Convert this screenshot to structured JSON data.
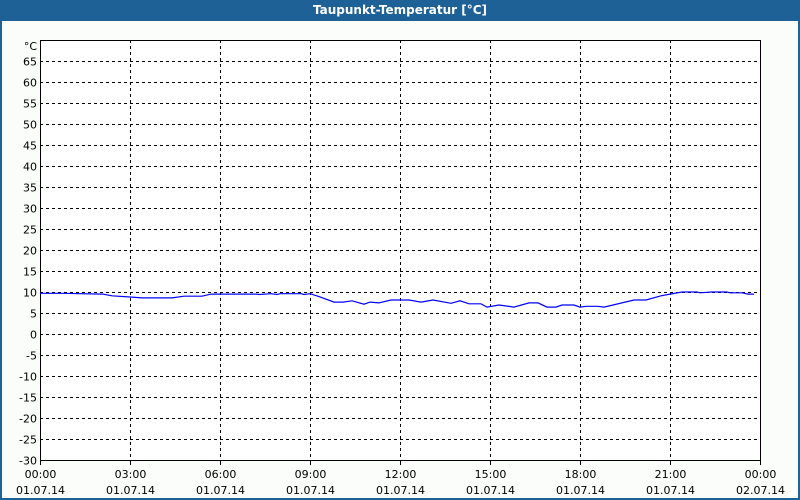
{
  "window": {
    "title": "Taupunkt-Temperatur [°C]"
  },
  "chart_data": {
    "type": "line",
    "title": "Taupunkt-Temperatur [°C]",
    "ylabel": "°C",
    "xlabel": "",
    "ylim": [
      -30,
      70
    ],
    "yticks": [
      65,
      60,
      55,
      50,
      45,
      40,
      35,
      30,
      25,
      20,
      15,
      10,
      5,
      0,
      -5,
      -10,
      -15,
      -20,
      -25,
      -30
    ],
    "xlim_hours": [
      0,
      24
    ],
    "xticks": [
      {
        "time": "00:00",
        "date": "01.07.14"
      },
      {
        "time": "03:00",
        "date": "01.07.14"
      },
      {
        "time": "06:00",
        "date": "01.07.14"
      },
      {
        "time": "09:00",
        "date": "01.07.14"
      },
      {
        "time": "12:00",
        "date": "01.07.14"
      },
      {
        "time": "15:00",
        "date": "01.07.14"
      },
      {
        "time": "18:00",
        "date": "01.07.14"
      },
      {
        "time": "21:00",
        "date": "01.07.14"
      },
      {
        "time": "00:00",
        "date": "02.07.14"
      }
    ],
    "grid": true,
    "line_color": "#0000ff",
    "series": [
      {
        "x_hours": [
          0,
          0.77,
          2.1,
          2.4,
          3,
          3.4,
          4.4,
          4.8,
          5.4,
          5.7,
          7.2,
          7.3,
          7.7,
          7.9,
          8,
          8.7,
          8.8,
          9,
          9.3,
          9.8,
          10.1,
          10.4,
          10.8,
          11,
          11.3,
          11.7,
          12.3,
          12.7,
          13.1,
          13.7,
          14,
          14.3,
          14.7,
          14.9,
          15.3,
          15.8,
          16.3,
          16.6,
          16.9,
          17.2,
          17.4,
          17.8,
          18,
          18.2,
          18.6,
          18.8,
          19.1,
          19.8,
          20.2,
          20.7,
          21,
          21.4,
          21.9,
          22,
          22.4,
          22.9,
          23,
          23.4,
          23.6,
          23.8
        ],
        "values": [
          9.7,
          9.7,
          9.5,
          9.1,
          8.8,
          8.6,
          8.6,
          9.0,
          9.0,
          9.5,
          9.5,
          9.4,
          9.6,
          9.4,
          9.6,
          9.6,
          9.4,
          9.6,
          8.9,
          7.6,
          7.6,
          7.9,
          7.1,
          7.6,
          7.4,
          8.1,
          8.1,
          7.6,
          8.1,
          7.3,
          7.9,
          7.2,
          7.2,
          6.4,
          6.9,
          6.4,
          7.4,
          7.4,
          6.4,
          6.4,
          6.9,
          6.9,
          6.4,
          6.6,
          6.6,
          6.4,
          6.9,
          8.1,
          8.1,
          9.1,
          9.5,
          10.0,
          10.0,
          9.8,
          10.0,
          10.0,
          9.8,
          9.8,
          9.5,
          9.5
        ]
      }
    ]
  }
}
